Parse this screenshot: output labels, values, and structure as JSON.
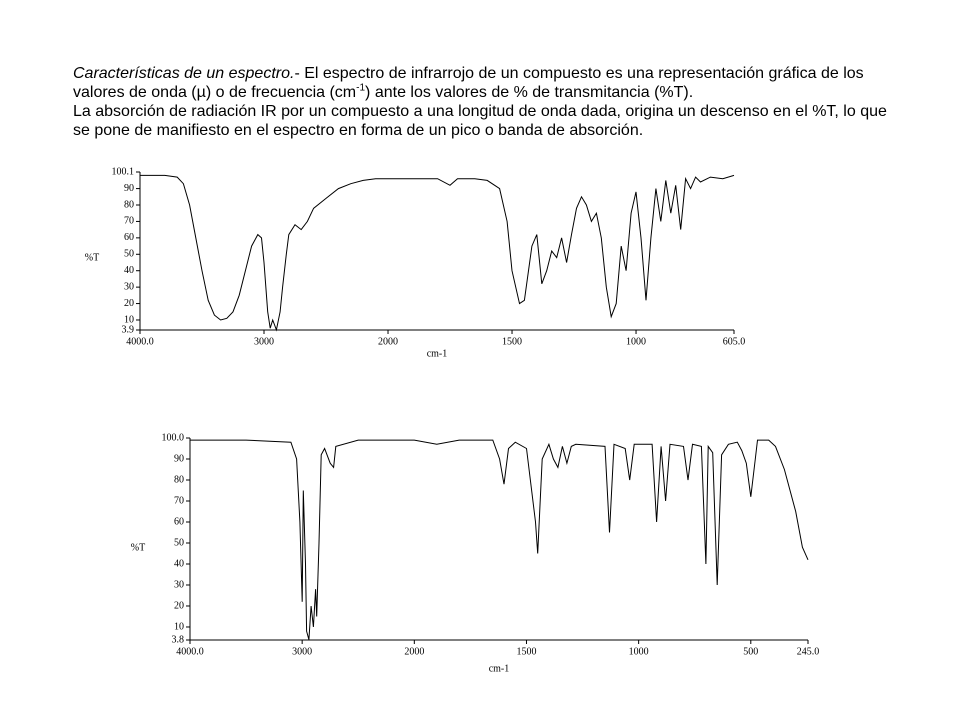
{
  "paragraph": {
    "lead": "Características de un espectro.",
    "text1": "- El espectro de infrarrojo de un compuesto es una representación gráfica de los valores de onda (µ) o de frecuencia (cm",
    "sup": "-1",
    "text2": ") ante los valores de % de transmitancia (%T).",
    "text3": "La absorción de radiación IR por un compuesto a una longitud de onda dada, origina un descenso en el %T, lo que se pone de manifiesto en el espectro en forma de un pico o banda de absorción."
  },
  "chart_data": [
    {
      "type": "line",
      "xlabel": "cm-1",
      "ylabel": "%T",
      "color": "#000000",
      "x_break": 2000,
      "xlim": [
        4000,
        605
      ],
      "xticks": [
        {
          "value": 4000,
          "label": "4000.0"
        },
        3000,
        2000,
        1500,
        1000,
        {
          "value": 605,
          "label": "605.0"
        }
      ],
      "ylim": [
        3.9,
        100.1
      ],
      "yticks": [
        3.9,
        10,
        20,
        30,
        40,
        50,
        60,
        70,
        80,
        90,
        100.1
      ],
      "x": [
        4000,
        3800,
        3700,
        3650,
        3600,
        3550,
        3500,
        3450,
        3400,
        3350,
        3300,
        3250,
        3200,
        3150,
        3100,
        3050,
        3020,
        3000,
        2970,
        2950,
        2930,
        2900,
        2870,
        2850,
        2820,
        2800,
        2750,
        2700,
        2650,
        2600,
        2500,
        2400,
        2300,
        2200,
        2100,
        2000,
        1900,
        1800,
        1750,
        1720,
        1650,
        1600,
        1550,
        1520,
        1500,
        1470,
        1450,
        1420,
        1400,
        1380,
        1360,
        1340,
        1320,
        1300,
        1280,
        1260,
        1240,
        1220,
        1200,
        1180,
        1160,
        1140,
        1120,
        1100,
        1080,
        1060,
        1040,
        1020,
        1000,
        980,
        960,
        940,
        920,
        900,
        880,
        860,
        840,
        820,
        800,
        780,
        760,
        740,
        700,
        650,
        605
      ],
      "values": [
        98,
        98,
        97,
        93,
        80,
        60,
        40,
        22,
        13,
        10,
        11,
        15,
        25,
        40,
        55,
        62,
        60,
        45,
        15,
        5,
        10,
        4,
        15,
        30,
        50,
        62,
        68,
        65,
        70,
        78,
        84,
        90,
        93,
        95,
        96,
        96,
        96,
        96,
        92,
        96,
        96,
        95,
        90,
        70,
        40,
        20,
        22,
        55,
        62,
        32,
        40,
        52,
        48,
        60,
        45,
        62,
        78,
        85,
        80,
        70,
        75,
        60,
        30,
        12,
        20,
        55,
        40,
        75,
        88,
        60,
        22,
        60,
        90,
        70,
        95,
        75,
        92,
        65,
        96,
        90,
        97,
        94,
        97,
        96,
        98
      ]
    },
    {
      "type": "line",
      "xlabel": "cm-1",
      "ylabel": "%T",
      "color": "#000000",
      "x_break": 2000,
      "xlim": [
        4000,
        245
      ],
      "xticks": [
        {
          "value": 4000,
          "label": "4000.0"
        },
        3000,
        2000,
        1500,
        1000,
        500,
        {
          "value": 245,
          "label": "245.0"
        }
      ],
      "ylim": [
        3.8,
        100
      ],
      "yticks": [
        3.8,
        10,
        20,
        30,
        40,
        50,
        60,
        70,
        80,
        90,
        {
          "value": 100,
          "label": "100.0"
        }
      ],
      "x": [
        4000,
        3500,
        3100,
        3050,
        3020,
        3000,
        2990,
        2970,
        2960,
        2940,
        2920,
        2900,
        2880,
        2870,
        2850,
        2830,
        2800,
        2750,
        2720,
        2700,
        2500,
        2000,
        1900,
        1800,
        1650,
        1620,
        1600,
        1580,
        1550,
        1500,
        1460,
        1450,
        1430,
        1400,
        1380,
        1360,
        1340,
        1320,
        1300,
        1280,
        1150,
        1130,
        1110,
        1060,
        1040,
        1020,
        940,
        920,
        900,
        880,
        860,
        800,
        780,
        760,
        720,
        700,
        690,
        670,
        650,
        630,
        600,
        560,
        540,
        520,
        500,
        480,
        470,
        420,
        390,
        350,
        300,
        270,
        245
      ],
      "values": [
        99,
        99,
        98,
        90,
        60,
        22,
        75,
        40,
        8,
        4,
        20,
        10,
        28,
        15,
        50,
        92,
        95,
        88,
        86,
        96,
        99,
        99,
        97,
        99,
        99,
        90,
        78,
        95,
        98,
        95,
        60,
        45,
        90,
        97,
        90,
        86,
        96,
        88,
        96,
        97,
        96,
        55,
        97,
        95,
        80,
        97,
        97,
        60,
        96,
        70,
        97,
        96,
        80,
        97,
        96,
        40,
        96,
        93,
        30,
        92,
        97,
        98,
        94,
        88,
        72,
        90,
        99,
        99,
        96,
        85,
        65,
        48,
        42
      ]
    }
  ]
}
